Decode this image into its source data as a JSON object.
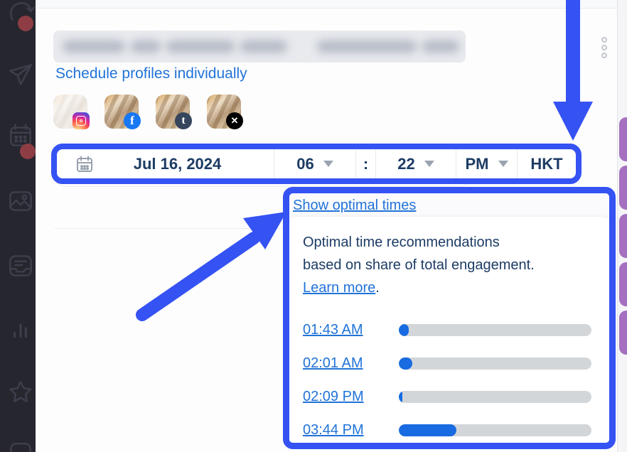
{
  "header": {
    "title_redacted": true,
    "menu_icon": "kebab-vertical"
  },
  "sidebar": {
    "items": [
      {
        "icon": "loop",
        "badge": true
      },
      {
        "icon": "paper-plane",
        "badge": false
      },
      {
        "icon": "calendar",
        "badge": true
      },
      {
        "icon": "image",
        "badge": false
      },
      {
        "icon": "chat",
        "badge": false
      },
      {
        "icon": "analytics",
        "badge": false
      },
      {
        "icon": "star",
        "badge": false
      },
      {
        "icon": "panel",
        "badge": false
      }
    ]
  },
  "scheduler": {
    "link": "Schedule profiles individually",
    "profiles": [
      {
        "network": "instagram",
        "badge_glyph": "",
        "faded": true
      },
      {
        "network": "facebook",
        "badge_glyph": "f",
        "faded": false
      },
      {
        "network": "tumblr",
        "badge_glyph": "t",
        "faded": false
      },
      {
        "network": "x",
        "badge_glyph": "✕",
        "faded": false
      }
    ],
    "datetime": {
      "date": "Jul 16, 2024",
      "hour": "06",
      "colon": ":",
      "minute": "22",
      "meridiem": "PM",
      "timezone": "HKT"
    }
  },
  "popup": {
    "toggle_link": "Show optimal times",
    "description": [
      "Optimal time recommendations",
      "based on share of total engagement."
    ],
    "learn_more_label": "Learn more",
    "learn_more_suffix": ".",
    "times": [
      {
        "label": "01:43 AM",
        "engagement_pct": 5
      },
      {
        "label": "02:01 AM",
        "engagement_pct": 7
      },
      {
        "label": "02:09 PM",
        "engagement_pct": 2
      },
      {
        "label": "03:44 PM",
        "engagement_pct": 30
      }
    ]
  },
  "colors": {
    "annotation_blue": "#3552f3",
    "link_blue": "#2173d8",
    "text_navy": "#1d3c64",
    "bar_fill": "#186be0",
    "bar_track": "#d3d6d9",
    "sidebar_bg": "#26262f",
    "badge_red": "#8e3d44",
    "facebook": "#1877f2",
    "tumblr": "#36465d",
    "x_black": "#000000",
    "purple_pill": "#a470bf"
  }
}
